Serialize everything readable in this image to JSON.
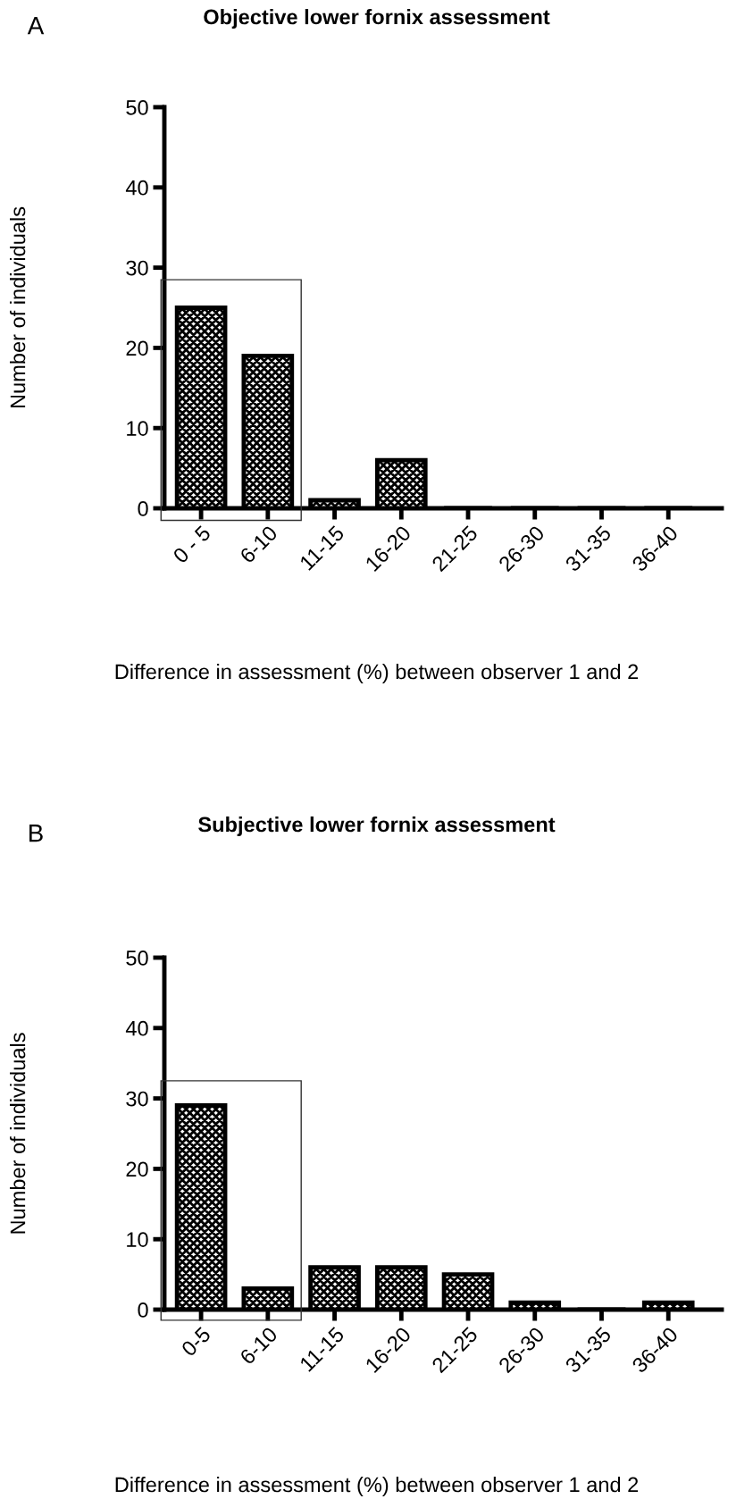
{
  "chart_data": [
    {
      "type": "bar",
      "title": "Objective lower fornix assessment",
      "xlabel": "Difference in assessment (%) between observer 1 and 2",
      "ylabel": "Number of individuals",
      "annotations": [
        "A"
      ],
      "categories": [
        "0 - 5",
        "6-10",
        "11-15",
        "16-20",
        "21-25",
        "26-30",
        "31-35",
        "36-40"
      ],
      "values": [
        25,
        19,
        1,
        6,
        0,
        0,
        0,
        0
      ],
      "color": "#000000",
      "ylim": [
        0,
        50
      ],
      "yticks": [
        0,
        10,
        20,
        30,
        40,
        50
      ],
      "grid": false
    },
    {
      "type": "bar",
      "title": "Subjective lower fornix assessment",
      "xlabel": "Difference in assessment (%) between observer 1 and 2",
      "ylabel": "Number of individuals",
      "annotations": [
        "B"
      ],
      "categories": [
        "0-5",
        "6-10",
        "11-15",
        "16-20",
        "21-25",
        "26-30",
        "31-35",
        "36-40"
      ],
      "values": [
        29,
        3,
        6,
        6,
        5,
        1,
        0,
        1
      ],
      "color": "#000000",
      "ylim": [
        0,
        50
      ],
      "yticks": [
        0,
        10,
        20,
        30,
        40,
        50
      ],
      "grid": false
    }
  ]
}
